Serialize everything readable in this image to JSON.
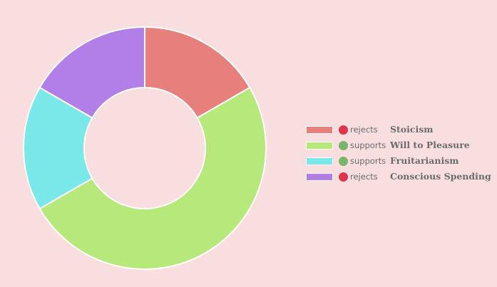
{
  "chart_data": {
    "type": "pie",
    "variant": "donut",
    "title": "",
    "slices": [
      {
        "label": "Stoicism",
        "stance": "rejects",
        "value": 1,
        "color": "#e77f7d",
        "stance_color": "#e0334d"
      },
      {
        "label": "Will to Pleasure",
        "stance": "supports",
        "value": 3,
        "color": "#b7e87c",
        "stance_color": "#79b66a"
      },
      {
        "label": "Fruitarianism",
        "stance": "supports",
        "value": 1,
        "color": "#7ae7e9",
        "stance_color": "#79b66a"
      },
      {
        "label": "Conscious Spending",
        "stance": "rejects",
        "value": 1,
        "color": "#b27ee8",
        "stance_color": "#e0334d"
      }
    ],
    "legend_position": "right",
    "background": "#f9dedf"
  }
}
